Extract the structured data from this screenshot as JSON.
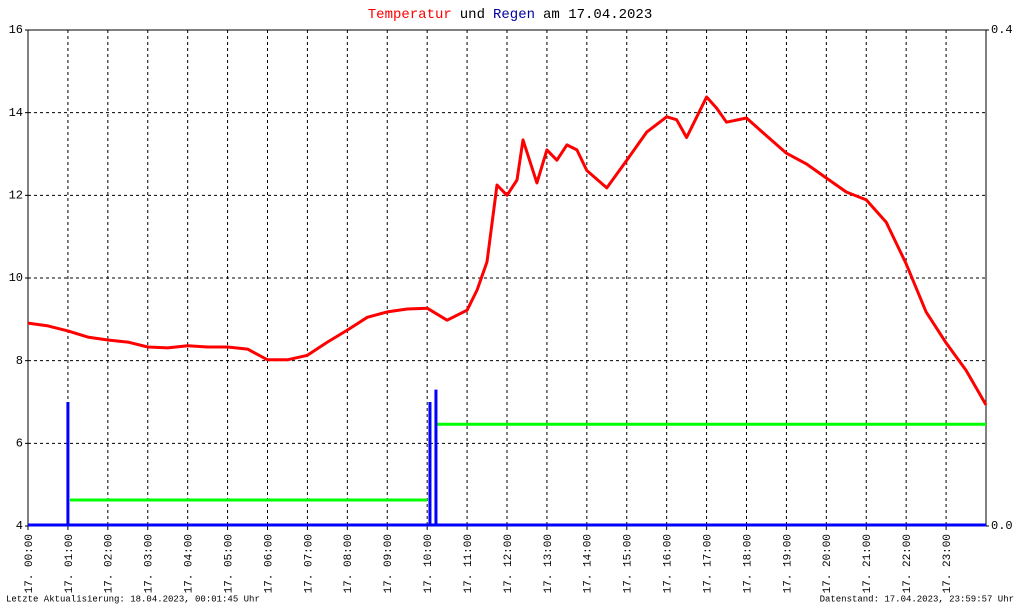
{
  "chart_data": {
    "type": "line",
    "title_parts": [
      {
        "text": "Temperatur",
        "color": "#ff0000"
      },
      {
        "text": "und",
        "color": "#000000"
      },
      {
        "text": "Regen",
        "color": "#0000a0"
      },
      {
        "text": "am 17.04.2023",
        "color": "#000000"
      }
    ],
    "xlim": [
      0,
      24
    ],
    "xticks": [
      {
        "value": 0,
        "label": "17. 00:00"
      },
      {
        "value": 1,
        "label": "17. 01:00"
      },
      {
        "value": 2,
        "label": "17. 02:00"
      },
      {
        "value": 3,
        "label": "17. 03:00"
      },
      {
        "value": 4,
        "label": "17. 04:00"
      },
      {
        "value": 5,
        "label": "17. 05:00"
      },
      {
        "value": 6,
        "label": "17. 06:00"
      },
      {
        "value": 7,
        "label": "17. 07:00"
      },
      {
        "value": 8,
        "label": "17. 08:00"
      },
      {
        "value": 9,
        "label": "17. 09:00"
      },
      {
        "value": 10,
        "label": "17. 10:00"
      },
      {
        "value": 11,
        "label": "17. 11:00"
      },
      {
        "value": 12,
        "label": "17. 12:00"
      },
      {
        "value": 13,
        "label": "17. 13:00"
      },
      {
        "value": 14,
        "label": "17. 14:00"
      },
      {
        "value": 15,
        "label": "17. 15:00"
      },
      {
        "value": 16,
        "label": "17. 16:00"
      },
      {
        "value": 17,
        "label": "17. 17:00"
      },
      {
        "value": 18,
        "label": "17. 18:00"
      },
      {
        "value": 19,
        "label": "17. 19:00"
      },
      {
        "value": 20,
        "label": "17. 20:00"
      },
      {
        "value": 21,
        "label": "17. 21:00"
      },
      {
        "value": 22,
        "label": "17. 22:00"
      },
      {
        "value": 23,
        "label": "17. 23:00"
      }
    ],
    "ylim": [
      4,
      16
    ],
    "yticks": [
      4,
      6,
      8,
      10,
      12,
      14,
      16
    ],
    "y2lim": [
      0,
      0.4
    ],
    "y2ticks": [
      {
        "value": 0,
        "label": "0.0"
      },
      0.4
    ],
    "grid": true,
    "series": [
      {
        "type": "line",
        "color": "#ff0000",
        "x": [
          0,
          0.5,
          1,
          1.5,
          2,
          2.5,
          3,
          3.5,
          4,
          4.5,
          5,
          5.5,
          6,
          6.5,
          7,
          7.5,
          8,
          8.5,
          9,
          9.5,
          10,
          10.5,
          11,
          11.25,
          11.5,
          11.75,
          12,
          12.25,
          12.4,
          12.75,
          13,
          13.25,
          13.5,
          13.75,
          14,
          14.5,
          15,
          15.5,
          16,
          16.25,
          16.5,
          17,
          17.25,
          17.5,
          18,
          18.5,
          19,
          19.5,
          20,
          20.5,
          21,
          21.5,
          22,
          22.5,
          23,
          23.5,
          24
        ],
        "values": [
          8.91,
          8.84,
          8.72,
          8.57,
          8.5,
          8.45,
          8.33,
          8.31,
          8.36,
          8.33,
          8.33,
          8.28,
          8.02,
          8.02,
          8.13,
          8.45,
          8.74,
          9.05,
          9.18,
          9.25,
          9.27,
          8.98,
          9.22,
          9.71,
          10.39,
          12.25,
          12.0,
          12.37,
          13.34,
          12.3,
          13.1,
          12.85,
          13.22,
          13.1,
          12.6,
          12.18,
          12.85,
          13.53,
          13.9,
          13.83,
          13.4,
          14.38,
          14.11,
          13.77,
          13.87,
          13.44,
          13.02,
          12.76,
          12.42,
          12.08,
          11.89,
          11.35,
          10.34,
          9.18,
          8.43,
          7.77,
          6.93
        ]
      },
      {
        "type": "line",
        "color": "#00ff00",
        "axis": "y2",
        "x": [
          1.05,
          10.0,
          10.1,
          10.25,
          24
        ],
        "values": [
          0.021,
          0.021,
          null,
          0.082,
          0.082
        ]
      },
      {
        "type": "bar",
        "color": "#0000ff",
        "axis": "y2",
        "x": [
          1.0,
          10.07,
          10.22
        ],
        "values": [
          0.1,
          0.1,
          0.11
        ]
      }
    ],
    "footer_left": "Letzte Aktualisierung: 18.04.2023, 00:01:45 Uhr",
    "footer_right": "Datenstand: 17.04.2023, 23:59:57 Uhr"
  }
}
